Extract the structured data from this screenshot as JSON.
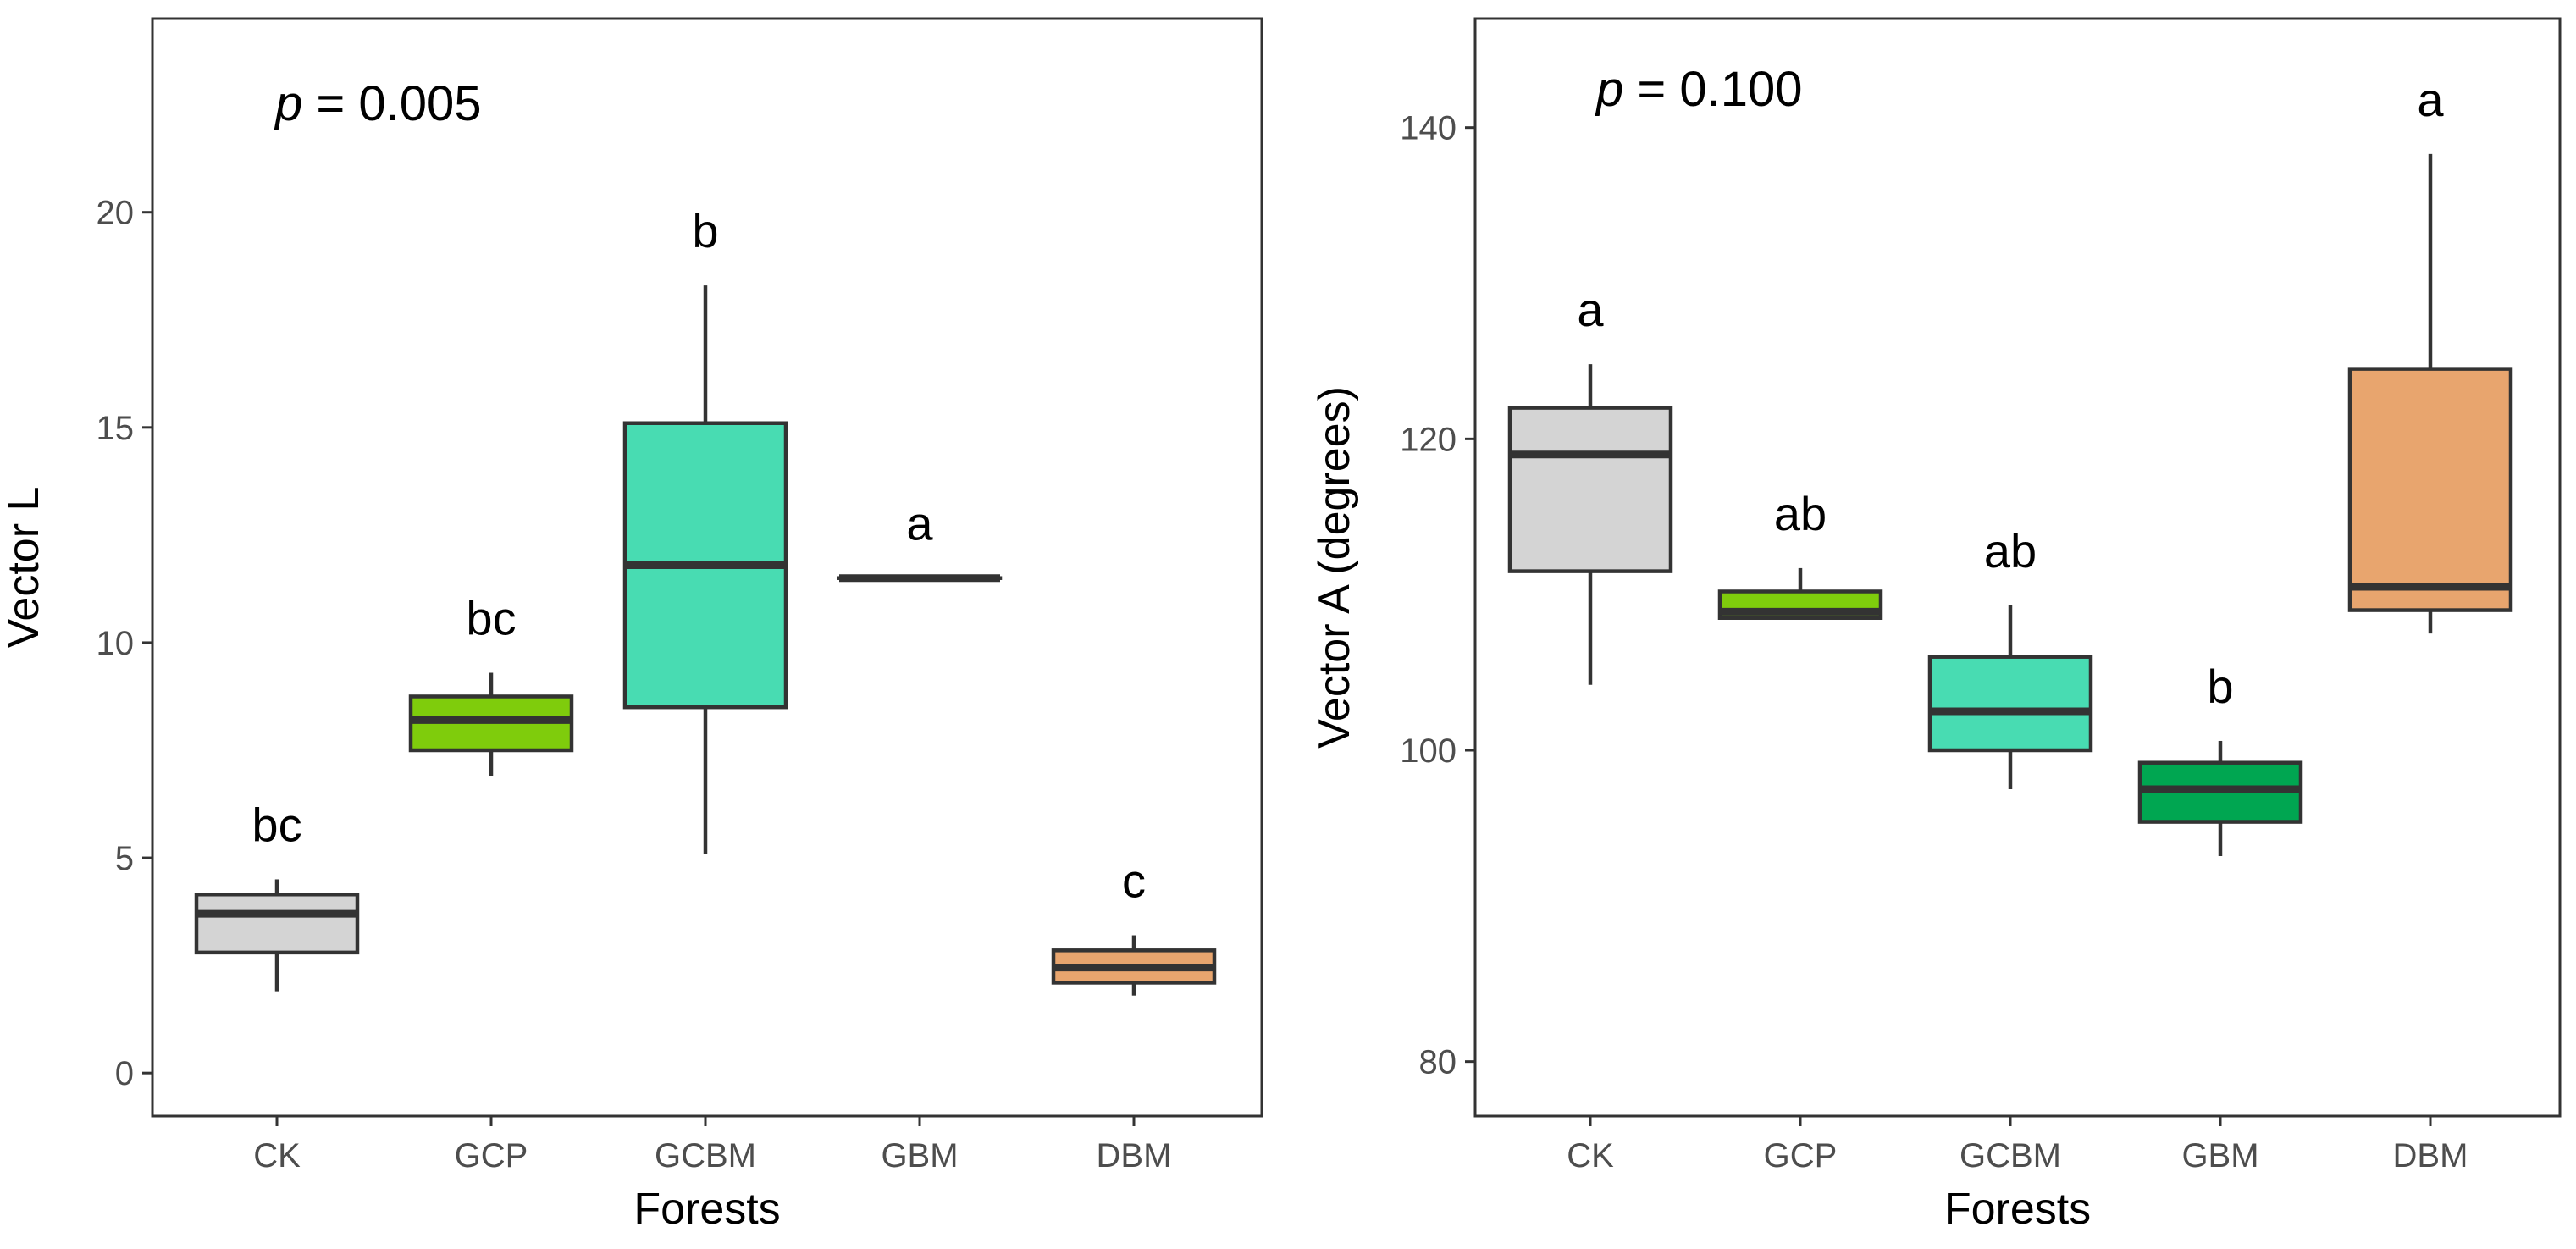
{
  "chart_data": [
    {
      "type": "boxplot",
      "panel": "left",
      "xlabel": "Forests",
      "ylabel": "Vector L",
      "ylim": [
        -1,
        24.5
      ],
      "yticks": [
        0,
        5,
        10,
        15,
        20
      ],
      "yticklabels": [
        "0",
        "5",
        "10",
        "15",
        "20"
      ],
      "p_prefix": "p",
      "p_suffix": " = 0.005",
      "categories": [
        "CK",
        "GCP",
        "GCBM",
        "GBM",
        "DBM"
      ],
      "boxes": [
        {
          "name": "CK",
          "min": 1.9,
          "q1": 2.8,
          "median": 3.7,
          "q3": 4.15,
          "max": 4.5,
          "color": "#d4d4d4",
          "letter": "bc"
        },
        {
          "name": "GCP",
          "min": 6.9,
          "q1": 7.5,
          "median": 8.2,
          "q3": 8.75,
          "max": 9.3,
          "color": "#7fcc0c",
          "letter": "bc"
        },
        {
          "name": "GCBM",
          "min": 5.1,
          "q1": 8.5,
          "median": 11.8,
          "q3": 15.1,
          "max": 18.3,
          "color": "#48dcb2",
          "letter": "b"
        },
        {
          "name": "GBM",
          "min": 11.5,
          "q1": 11.5,
          "median": 11.5,
          "q3": 11.5,
          "max": 11.5,
          "color": "#00a651",
          "letter": "a"
        },
        {
          "name": "DBM",
          "min": 1.8,
          "q1": 2.1,
          "median": 2.45,
          "q3": 2.85,
          "max": 3.2,
          "color": "#e8a56e",
          "letter": "c"
        }
      ]
    },
    {
      "type": "boxplot",
      "panel": "right",
      "xlabel": "Forests",
      "ylabel": "Vector A (degrees)",
      "ylim": [
        76.5,
        147
      ],
      "yticks": [
        80,
        100,
        120,
        140
      ],
      "yticklabels": [
        "80",
        "100",
        "120",
        "140"
      ],
      "p_prefix": "p",
      "p_suffix": " = 0.100",
      "categories": [
        "CK",
        "GCP",
        "GCBM",
        "GBM",
        "DBM"
      ],
      "boxes": [
        {
          "name": "CK",
          "min": 104.2,
          "q1": 111.5,
          "median": 119.0,
          "q3": 122.0,
          "max": 124.8,
          "color": "#d4d4d4",
          "letter": "a"
        },
        {
          "name": "GCP",
          "min": 108.5,
          "q1": 108.5,
          "median": 108.9,
          "q3": 110.2,
          "max": 111.7,
          "color": "#7fcc0c",
          "letter": "ab"
        },
        {
          "name": "GCBM",
          "min": 97.5,
          "q1": 100.0,
          "median": 102.5,
          "q3": 106.0,
          "max": 109.3,
          "color": "#48dcb2",
          "letter": "ab"
        },
        {
          "name": "GBM",
          "min": 93.2,
          "q1": 95.4,
          "median": 97.5,
          "q3": 99.2,
          "max": 100.6,
          "color": "#00a651",
          "letter": "b"
        },
        {
          "name": "DBM",
          "min": 107.5,
          "q1": 109.0,
          "median": 110.5,
          "q3": 124.5,
          "max": 138.3,
          "color": "#e8a56e",
          "letter": "a"
        }
      ]
    }
  ]
}
